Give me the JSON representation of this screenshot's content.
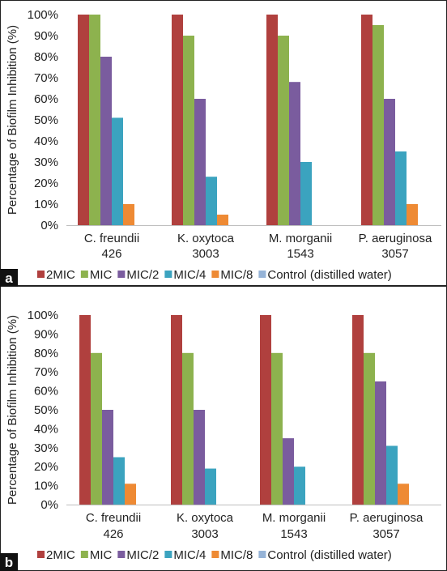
{
  "figure": {
    "panel_colors": {
      "2MIC": "#B0403E",
      "MIC": "#8DB24E",
      "MIC/2": "#7A5C9E",
      "MIC/4": "#3BA3BF",
      "MIC/8": "#EE8A34",
      "Control (distilled water)": "#95B3D7"
    }
  },
  "chart_data": [
    {
      "panel_label": "a",
      "type": "bar",
      "ylabel": "Percentage of Biofilm Inhibition (%)",
      "ylim": [
        0,
        100
      ],
      "yticks": [
        "0%",
        "10%",
        "20%",
        "30%",
        "40%",
        "50%",
        "60%",
        "70%",
        "80%",
        "90%",
        "100%"
      ],
      "categories": [
        [
          "C. freundii",
          "426"
        ],
        [
          "K. oxytoca",
          "3003"
        ],
        [
          "M. morganii",
          "1543"
        ],
        [
          "P. aeruginosa",
          "3057"
        ]
      ],
      "legend_position": "bottom",
      "series": [
        {
          "name": "2MIC",
          "color": "#B0403E",
          "values": [
            100,
            100,
            100,
            100
          ]
        },
        {
          "name": "MIC",
          "color": "#8DB24E",
          "values": [
            100,
            90,
            90,
            95
          ]
        },
        {
          "name": "MIC/2",
          "color": "#7A5C9E",
          "values": [
            80,
            60,
            68,
            60
          ]
        },
        {
          "name": "MIC/4",
          "color": "#3BA3BF",
          "values": [
            51,
            23,
            30,
            35
          ]
        },
        {
          "name": "MIC/8",
          "color": "#EE8A34",
          "values": [
            10,
            5,
            0,
            10
          ]
        },
        {
          "name": "Control (distilled water)",
          "color": "#95B3D7",
          "values": [
            0,
            0,
            0,
            0
          ]
        }
      ]
    },
    {
      "panel_label": "b",
      "type": "bar",
      "ylabel": "Percentage of Biofilm Inhibition (%)",
      "ylim": [
        0,
        100
      ],
      "yticks": [
        "0%",
        "10%",
        "20%",
        "30%",
        "40%",
        "50%",
        "60%",
        "70%",
        "80%",
        "90%",
        "100%"
      ],
      "categories": [
        [
          "C. freundii",
          "426"
        ],
        [
          "K. oxytoca",
          "3003"
        ],
        [
          "M. morganii",
          "1543"
        ],
        [
          "P. aeruginosa",
          "3057"
        ]
      ],
      "legend_position": "bottom",
      "series": [
        {
          "name": "2MIC",
          "color": "#B0403E",
          "values": [
            100,
            100,
            100,
            100
          ]
        },
        {
          "name": "MIC",
          "color": "#8DB24E",
          "values": [
            80,
            80,
            80,
            80
          ]
        },
        {
          "name": "MIC/2",
          "color": "#7A5C9E",
          "values": [
            50,
            50,
            35,
            65
          ]
        },
        {
          "name": "MIC/4",
          "color": "#3BA3BF",
          "values": [
            25,
            19,
            20,
            31
          ]
        },
        {
          "name": "MIC/8",
          "color": "#EE8A34",
          "values": [
            11,
            0,
            0,
            11
          ]
        },
        {
          "name": "Control (distilled water)",
          "color": "#95B3D7",
          "values": [
            0,
            0,
            0,
            0
          ]
        }
      ]
    }
  ]
}
